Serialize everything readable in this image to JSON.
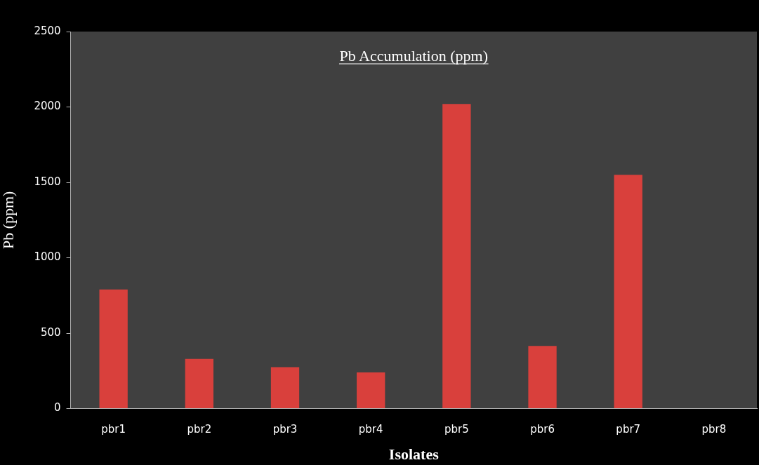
{
  "chart_data": {
    "type": "bar",
    "title": "Pb Accumulation (ppm)",
    "xlabel": "Isolates",
    "ylabel": "Pb (ppm)",
    "categories": [
      "pbr1",
      "pbr2",
      "pbr3",
      "pbr4",
      "pbr5",
      "pbr6",
      "pbr7",
      "pbr8"
    ],
    "values": [
      790,
      330,
      275,
      240,
      2020,
      415,
      1550,
      0
    ],
    "color": "#d9403c",
    "ylim": [
      0,
      2500
    ],
    "yticks": [
      0,
      500,
      1000,
      1500,
      2000,
      2500
    ],
    "grid": false,
    "legend": false
  }
}
